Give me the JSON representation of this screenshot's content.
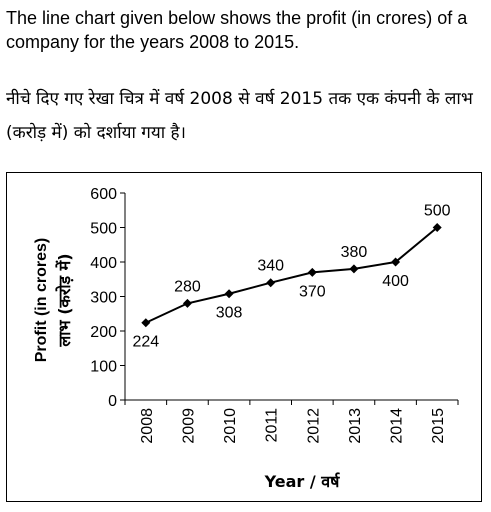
{
  "intro": {
    "english": "The line chart given below shows the profit (in crores) of a company for the years 2008 to 2015.",
    "hindi": "नीचे दिए गए रेखा चित्र में वर्ष 2008 से वर्ष 2015 तक एक कंपनी के लाभ (करोड़ में) को दर्शाया गया है।"
  },
  "chart_data": {
    "type": "line",
    "x": [
      "2008",
      "2009",
      "2010",
      "2011",
      "2012",
      "2013",
      "2014",
      "2015"
    ],
    "values": [
      224,
      280,
      308,
      340,
      370,
      380,
      400,
      500
    ],
    "data_labels": [
      "224",
      "280",
      "308",
      "340",
      "370",
      "380",
      "400",
      "500"
    ],
    "ylabel_line1": "Profit (in crores)",
    "ylabel_line2": "लाभ (करोड़ में)",
    "xlabel": "Year / वर्ष",
    "ylim": [
      0,
      600
    ],
    "yticks": [
      0,
      100,
      200,
      300,
      400,
      500,
      600
    ],
    "grid": false,
    "marker": "diamond",
    "line_color": "#000000"
  }
}
